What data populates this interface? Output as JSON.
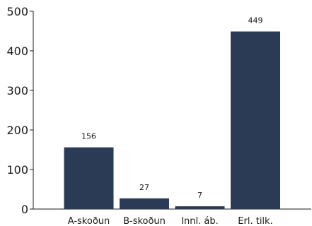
{
  "chart_data": {
    "type": "bar",
    "categories": [
      "A-skoðun",
      "B-skoðun",
      "Innl. áb.",
      "Erl. tilk."
    ],
    "values": [
      156,
      27,
      7,
      449
    ],
    "value_labels": [
      "156",
      "27",
      "7",
      "449"
    ],
    "title": "",
    "xlabel": "",
    "ylabel": "",
    "ylim": [
      0,
      500
    ],
    "yticks": [
      "0",
      "100",
      "200",
      "300",
      "400",
      "500"
    ],
    "grid": false,
    "bar_color": "#2b3a55"
  }
}
